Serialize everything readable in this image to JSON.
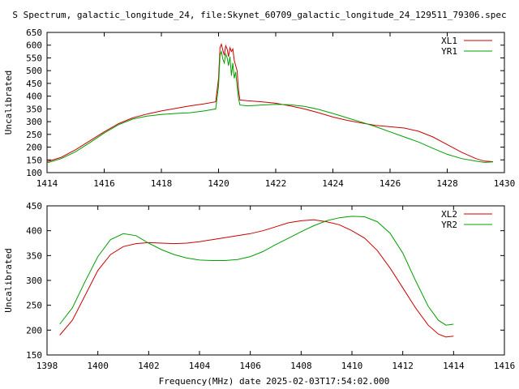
{
  "figure": {
    "title": "S Spectrum, galactic_longitude_24, file:Skynet_60709_galactic_longitude_24_129511_79306.spec",
    "xlabel": "Frequency(MHz) date 2025-02-03T17:54:02.000"
  },
  "colors": {
    "xl": "#cc0000",
    "yr": "#00a000",
    "axis": "#000000"
  },
  "chart_data": [
    {
      "type": "line",
      "title": "S Spectrum, galactic_longitude_24, file:Skynet_60709_galactic_longitude_24_129511_79306.spec",
      "xlabel": "",
      "ylabel": "Uncalibrated",
      "xlim": [
        1414,
        1430
      ],
      "ylim": [
        100,
        650
      ],
      "xticks": [
        1414,
        1416,
        1418,
        1420,
        1422,
        1424,
        1426,
        1428,
        1430
      ],
      "yticks": [
        100,
        150,
        200,
        250,
        300,
        350,
        400,
        450,
        500,
        550,
        600,
        650
      ],
      "grid": false,
      "legend": "top-right",
      "series": [
        {
          "name": "XL1",
          "color": "#cc0000",
          "points": [
            [
              1414.0,
              143
            ],
            [
              1414.5,
              160
            ],
            [
              1415.0,
              190
            ],
            [
              1415.5,
              225
            ],
            [
              1416.0,
              260
            ],
            [
              1416.5,
              292
            ],
            [
              1417.0,
              315
            ],
            [
              1417.5,
              330
            ],
            [
              1418.0,
              342
            ],
            [
              1418.5,
              352
            ],
            [
              1419.0,
              362
            ],
            [
              1419.5,
              370
            ],
            [
              1419.9,
              378
            ],
            [
              1420.0,
              470
            ],
            [
              1420.05,
              590
            ],
            [
              1420.1,
              604
            ],
            [
              1420.15,
              580
            ],
            [
              1420.2,
              560
            ],
            [
              1420.25,
              598
            ],
            [
              1420.3,
              585
            ],
            [
              1420.35,
              555
            ],
            [
              1420.4,
              590
            ],
            [
              1420.45,
              575
            ],
            [
              1420.5,
              585
            ],
            [
              1420.55,
              540
            ],
            [
              1420.6,
              520
            ],
            [
              1420.65,
              500
            ],
            [
              1420.7,
              420
            ],
            [
              1420.75,
              385
            ],
            [
              1421.0,
              382
            ],
            [
              1421.5,
              378
            ],
            [
              1422.0,
              372
            ],
            [
              1422.5,
              362
            ],
            [
              1423.0,
              350
            ],
            [
              1423.5,
              335
            ],
            [
              1424.0,
              318
            ],
            [
              1424.5,
              305
            ],
            [
              1425.0,
              295
            ],
            [
              1425.5,
              285
            ],
            [
              1426.0,
              280
            ],
            [
              1426.5,
              275
            ],
            [
              1427.0,
              262
            ],
            [
              1427.5,
              240
            ],
            [
              1428.0,
              210
            ],
            [
              1428.5,
              180
            ],
            [
              1429.0,
              155
            ],
            [
              1429.3,
              145
            ],
            [
              1429.6,
              143
            ]
          ]
        },
        {
          "name": "YR1",
          "color": "#00a000",
          "points": [
            [
              1414.0,
              138
            ],
            [
              1414.5,
              155
            ],
            [
              1415.0,
              182
            ],
            [
              1415.5,
              218
            ],
            [
              1416.0,
              255
            ],
            [
              1416.5,
              288
            ],
            [
              1417.0,
              310
            ],
            [
              1417.5,
              322
            ],
            [
              1418.0,
              328
            ],
            [
              1418.5,
              332
            ],
            [
              1419.0,
              335
            ],
            [
              1419.5,
              342
            ],
            [
              1419.9,
              350
            ],
            [
              1420.0,
              440
            ],
            [
              1420.05,
              560
            ],
            [
              1420.1,
              575
            ],
            [
              1420.15,
              545
            ],
            [
              1420.2,
              530
            ],
            [
              1420.25,
              565
            ],
            [
              1420.3,
              550
            ],
            [
              1420.35,
              520
            ],
            [
              1420.4,
              555
            ],
            [
              1420.45,
              480
            ],
            [
              1420.5,
              530
            ],
            [
              1420.55,
              470
            ],
            [
              1420.6,
              495
            ],
            [
              1420.65,
              440
            ],
            [
              1420.7,
              390
            ],
            [
              1420.75,
              365
            ],
            [
              1421.0,
              362
            ],
            [
              1421.5,
              365
            ],
            [
              1422.0,
              368
            ],
            [
              1422.5,
              366
            ],
            [
              1423.0,
              360
            ],
            [
              1423.5,
              348
            ],
            [
              1424.0,
              332
            ],
            [
              1424.5,
              315
            ],
            [
              1425.0,
              298
            ],
            [
              1425.5,
              280
            ],
            [
              1426.0,
              260
            ],
            [
              1426.5,
              240
            ],
            [
              1427.0,
              220
            ],
            [
              1427.5,
              195
            ],
            [
              1428.0,
              172
            ],
            [
              1428.5,
              155
            ],
            [
              1429.0,
              145
            ],
            [
              1429.3,
              140
            ],
            [
              1429.6,
              142
            ]
          ]
        }
      ]
    },
    {
      "type": "line",
      "title": "",
      "xlabel": "Frequency(MHz) date 2025-02-03T17:54:02.000",
      "ylabel": "Uncalibrated",
      "xlim": [
        1398,
        1416
      ],
      "ylim": [
        150,
        450
      ],
      "xticks": [
        1398,
        1400,
        1402,
        1404,
        1406,
        1408,
        1410,
        1412,
        1414,
        1416
      ],
      "yticks": [
        150,
        200,
        250,
        300,
        350,
        400,
        450
      ],
      "grid": false,
      "legend": "top-right",
      "series": [
        {
          "name": "XL2",
          "color": "#cc0000",
          "points": [
            [
              1398.5,
              190
            ],
            [
              1399.0,
              220
            ],
            [
              1399.5,
              270
            ],
            [
              1400.0,
              320
            ],
            [
              1400.5,
              352
            ],
            [
              1401.0,
              368
            ],
            [
              1401.5,
              374
            ],
            [
              1402.0,
              376
            ],
            [
              1402.5,
              375
            ],
            [
              1403.0,
              374
            ],
            [
              1403.5,
              375
            ],
            [
              1404.0,
              378
            ],
            [
              1404.5,
              382
            ],
            [
              1405.0,
              386
            ],
            [
              1405.5,
              390
            ],
            [
              1406.0,
              394
            ],
            [
              1406.5,
              400
            ],
            [
              1407.0,
              408
            ],
            [
              1407.5,
              416
            ],
            [
              1408.0,
              420
            ],
            [
              1408.5,
              422
            ],
            [
              1409.0,
              418
            ],
            [
              1409.5,
              412
            ],
            [
              1410.0,
              400
            ],
            [
              1410.5,
              385
            ],
            [
              1411.0,
              360
            ],
            [
              1411.5,
              325
            ],
            [
              1412.0,
              285
            ],
            [
              1412.5,
              245
            ],
            [
              1413.0,
              210
            ],
            [
              1413.4,
              192
            ],
            [
              1413.7,
              186
            ],
            [
              1414.0,
              188
            ]
          ]
        },
        {
          "name": "YR2",
          "color": "#00a000",
          "points": [
            [
              1398.5,
              212
            ],
            [
              1399.0,
              245
            ],
            [
              1399.5,
              298
            ],
            [
              1400.0,
              348
            ],
            [
              1400.5,
              382
            ],
            [
              1401.0,
              394
            ],
            [
              1401.5,
              390
            ],
            [
              1402.0,
              375
            ],
            [
              1402.5,
              362
            ],
            [
              1403.0,
              352
            ],
            [
              1403.5,
              345
            ],
            [
              1404.0,
              341
            ],
            [
              1404.5,
              340
            ],
            [
              1405.0,
              340
            ],
            [
              1405.5,
              342
            ],
            [
              1406.0,
              348
            ],
            [
              1406.5,
              358
            ],
            [
              1407.0,
              372
            ],
            [
              1407.5,
              385
            ],
            [
              1408.0,
              398
            ],
            [
              1408.5,
              410
            ],
            [
              1409.0,
              420
            ],
            [
              1409.5,
              426
            ],
            [
              1410.0,
              429
            ],
            [
              1410.5,
              428
            ],
            [
              1411.0,
              418
            ],
            [
              1411.5,
              395
            ],
            [
              1412.0,
              355
            ],
            [
              1412.5,
              300
            ],
            [
              1413.0,
              248
            ],
            [
              1413.4,
              220
            ],
            [
              1413.7,
              210
            ],
            [
              1414.0,
              212
            ]
          ]
        }
      ]
    }
  ]
}
